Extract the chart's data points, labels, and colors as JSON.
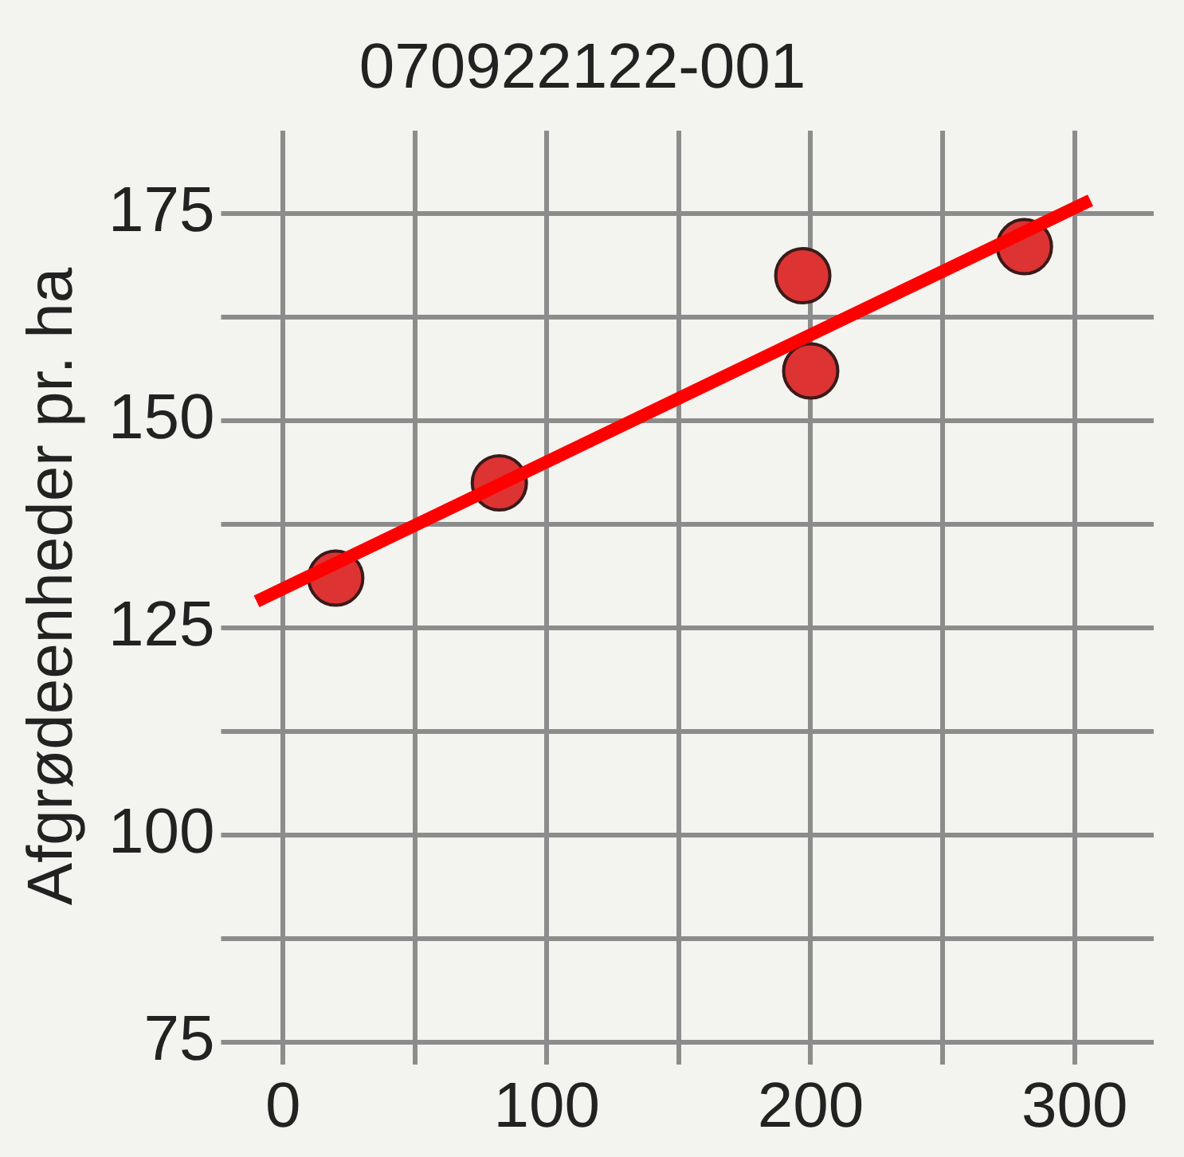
{
  "chart_data": {
    "type": "scatter",
    "title": "070922122-001",
    "ylabel": "Afgrødeenheder pr. ha",
    "xlim": [
      -15,
      330
    ],
    "ylim": [
      75,
      185
    ],
    "xticks": [
      0,
      {
        "value": 50,
        "label": null
      },
      100,
      {
        "value": 150,
        "label": null
      },
      200,
      {
        "value": 250,
        "label": null
      },
      300
    ],
    "yticks": [
      75,
      {
        "value": 87.5,
        "label": null
      },
      100,
      {
        "value": 112.5,
        "label": null
      },
      125,
      {
        "value": 137.5,
        "label": null
      },
      150,
      {
        "value": 162.5,
        "label": null
      },
      175
    ],
    "grid": true,
    "legend": false,
    "series": [
      {
        "color": "#dd3333",
        "marker": "circle",
        "x": [
          20,
          82,
          197,
          200,
          281
        ],
        "values": [
          131,
          142.5,
          167.5,
          156,
          171
        ]
      },
      {
        "type": "line",
        "marker": "none",
        "color": "#ff0000",
        "x": [
          -10,
          306
        ],
        "values": [
          128.2,
          176.6
        ]
      }
    ]
  }
}
